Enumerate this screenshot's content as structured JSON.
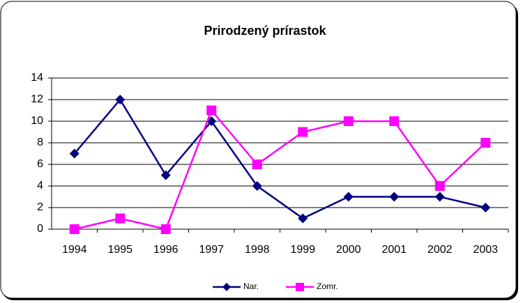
{
  "chart_data": {
    "type": "line",
    "title": "Prirodzený prírastok",
    "categories": [
      "1994",
      "1995",
      "1996",
      "1997",
      "1998",
      "1999",
      "2000",
      "2001",
      "2002",
      "2003"
    ],
    "series": [
      {
        "name": "Nar.",
        "color": "#000080",
        "marker": "diamond",
        "values": [
          7,
          12,
          5,
          10,
          4,
          1,
          3,
          3,
          3,
          2
        ]
      },
      {
        "name": "Zomr.",
        "color": "#ff00ff",
        "marker": "square",
        "values": [
          0,
          1,
          0,
          11,
          6,
          9,
          10,
          10,
          4,
          8
        ]
      }
    ],
    "ylim": [
      0,
      14
    ],
    "yticks": [
      0,
      2,
      4,
      6,
      8,
      10,
      12,
      14
    ],
    "grid": true,
    "legend": "bottom"
  }
}
